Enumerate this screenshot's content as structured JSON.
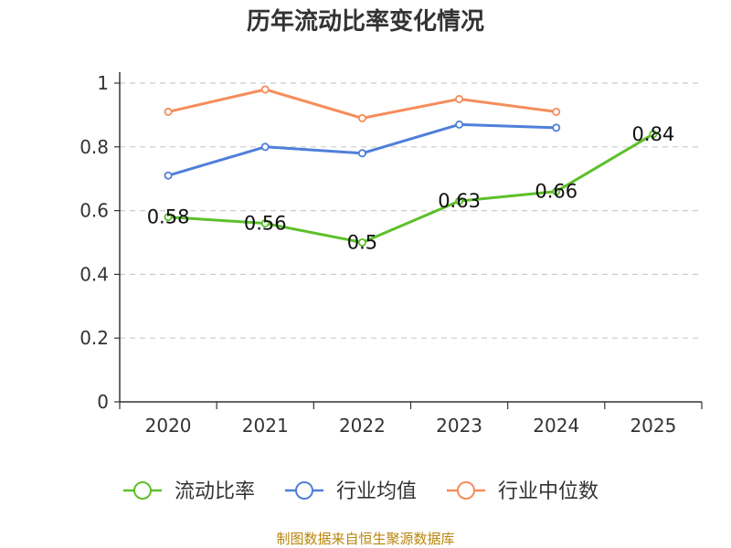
{
  "chart_data": {
    "type": "line",
    "title": "历年流动比率变化情况",
    "categories": [
      "2020",
      "2021",
      "2022",
      "2023",
      "2024",
      "2025"
    ],
    "series": [
      {
        "name": "流动比率",
        "color": "#5cc02a",
        "values": [
          0.58,
          0.56,
          0.5,
          0.63,
          0.66,
          0.84
        ],
        "labels": [
          "0.58",
          "0.56",
          "0.5",
          "0.63",
          "0.66",
          "0.84"
        ]
      },
      {
        "name": "行业均值",
        "color": "#4f7fd9",
        "values": [
          0.71,
          0.8,
          0.78,
          0.87,
          0.86,
          null
        ]
      },
      {
        "name": "行业中位数",
        "color": "#f58d5b",
        "values": [
          0.91,
          0.98,
          0.89,
          0.95,
          0.91,
          null
        ]
      }
    ],
    "ylim": [
      0,
      1
    ],
    "yticks": [
      {
        "value": 0,
        "label": "0"
      },
      {
        "value": 0.2,
        "label": "0.2"
      },
      {
        "value": 0.4,
        "label": "0.4"
      },
      {
        "value": 0.6,
        "label": "0.6"
      },
      {
        "value": 0.8,
        "label": "0.8"
      },
      {
        "value": 1,
        "label": "1"
      }
    ],
    "grid": true,
    "legend_position": "bottom",
    "xlabel": "",
    "ylabel": ""
  },
  "source": "制图数据来自恒生聚源数据库"
}
